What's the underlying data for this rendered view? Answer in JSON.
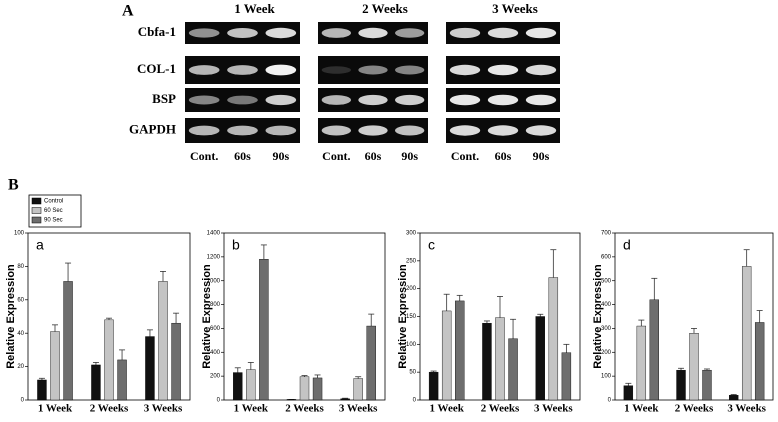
{
  "panel_a": {
    "label": "A",
    "groups": [
      "1 Week",
      "2 Weeks",
      "3 Weeks"
    ],
    "genes": [
      "Cbfa-1",
      "COL-1",
      "BSP",
      "GAPDH"
    ],
    "lanes": [
      [
        "Cont.",
        "60s",
        "90s"
      ],
      [
        "Cont.",
        "60s",
        "90s"
      ],
      [
        "Cont.",
        "60s",
        "90s"
      ]
    ]
  },
  "panel_b": {
    "label": "B"
  },
  "chart_data": [
    {
      "type": "bar",
      "panel_label": "a",
      "y_label": "Relative Expression",
      "categories": [
        "1 Week",
        "2 Weeks",
        "3 Weeks"
      ],
      "ylim": [
        0,
        100
      ],
      "yticks": [
        0,
        20,
        40,
        60,
        80,
        100
      ],
      "series": [
        {
          "name": "Control",
          "color": "#111111",
          "values": [
            12,
            21,
            38
          ],
          "errors": [
            1,
            1.5,
            4
          ]
        },
        {
          "name": "60 Sec",
          "color": "#c4c4c4",
          "values": [
            41,
            48,
            71
          ],
          "errors": [
            4,
            1,
            6
          ]
        },
        {
          "name": "90 Sec",
          "color": "#6e6e6e",
          "values": [
            71,
            24,
            46
          ],
          "errors": [
            11,
            6,
            6
          ]
        }
      ]
    },
    {
      "type": "bar",
      "panel_label": "b",
      "y_label": "Relative Expression",
      "categories": [
        "1 Week",
        "2 Weeks",
        "3 Weeks"
      ],
      "ylim": [
        0,
        1400
      ],
      "yticks": [
        0,
        200,
        400,
        600,
        800,
        1000,
        1200,
        1400
      ],
      "series": [
        {
          "color": "#111111",
          "values": [
            230,
            5,
            10
          ],
          "errors": [
            40,
            0,
            5
          ]
        },
        {
          "color": "#c4c4c4",
          "values": [
            255,
            195,
            180
          ],
          "errors": [
            60,
            10,
            15
          ]
        },
        {
          "color": "#6e6e6e",
          "values": [
            1180,
            185,
            620
          ],
          "errors": [
            120,
            25,
            100
          ]
        }
      ]
    },
    {
      "type": "bar",
      "panel_label": "c",
      "y_label": "Relative Expression",
      "categories": [
        "1 Week",
        "2 Weeks",
        "3 Weeks"
      ],
      "ylim": [
        0,
        300
      ],
      "yticks": [
        0,
        50,
        100,
        150,
        200,
        250,
        300
      ],
      "series": [
        {
          "color": "#111111",
          "values": [
            50,
            138,
            150
          ],
          "errors": [
            2,
            4,
            4
          ]
        },
        {
          "color": "#c4c4c4",
          "values": [
            160,
            148,
            220
          ],
          "errors": [
            30,
            38,
            50
          ]
        },
        {
          "color": "#6e6e6e",
          "values": [
            178,
            110,
            85
          ],
          "errors": [
            10,
            35,
            15
          ]
        }
      ]
    },
    {
      "type": "bar",
      "panel_label": "d",
      "y_label": "Relative Expression",
      "categories": [
        "1 Week",
        "2 Weeks",
        "3 Weeks"
      ],
      "ylim": [
        0,
        700
      ],
      "yticks": [
        0,
        100,
        200,
        300,
        400,
        500,
        600,
        700
      ],
      "series": [
        {
          "color": "#111111",
          "values": [
            60,
            125,
            20
          ],
          "errors": [
            10,
            8,
            3
          ]
        },
        {
          "color": "#c4c4c4",
          "values": [
            310,
            280,
            560
          ],
          "errors": [
            25,
            20,
            70
          ]
        },
        {
          "color": "#6e6e6e",
          "values": [
            420,
            125,
            325
          ],
          "errors": [
            90,
            5,
            50
          ]
        }
      ]
    }
  ]
}
